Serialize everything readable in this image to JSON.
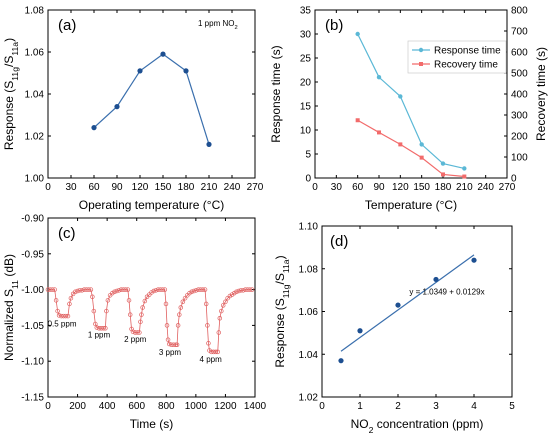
{
  "chart_data": [
    {
      "panel_label": "(a)",
      "type": "line",
      "annotation": {
        "prefix": "1 ppm NO",
        "sub": "2"
      },
      "x": [
        60,
        90,
        120,
        150,
        180,
        210
      ],
      "series": [
        {
          "values": [
            1.024,
            1.034,
            1.051,
            1.059,
            1.051,
            1.016
          ],
          "color": "#3a6fad"
        }
      ],
      "xlabel": "Operating temperature (°C)",
      "ylabel": {
        "prefix": "Response (S",
        "sub1": "11g",
        "mid": "/S",
        "sub2": "11a",
        "suffix": ")"
      },
      "xlim": [
        0,
        270
      ],
      "ylim": [
        1.0,
        1.08
      ],
      "xticks": [
        0,
        30,
        60,
        90,
        120,
        150,
        180,
        210,
        240,
        270
      ],
      "yticks": [
        1.0,
        1.02,
        1.04,
        1.06,
        1.08
      ],
      "ytick_labels": [
        "1.00",
        "1.02",
        "1.04",
        "1.06",
        "1.08"
      ],
      "grid": false
    },
    {
      "panel_label": "(b)",
      "type": "line",
      "x": [
        60,
        90,
        120,
        150,
        180,
        210
      ],
      "series": [
        {
          "name": "Response time",
          "axis": "left",
          "values": [
            30,
            21,
            17,
            7,
            3,
            2
          ],
          "color": "#5bb8d6"
        },
        {
          "name": "Recovery time",
          "axis": "right",
          "values": [
            275,
            217,
            160,
            97,
            17,
            7
          ],
          "color": "#f26b6b"
        }
      ],
      "xlabel": "Temperature (°C)",
      "ylabel": "Response time (s)",
      "ylabel_right": "Recovery time (s)",
      "xlim": [
        0,
        270
      ],
      "ylim": [
        0,
        35
      ],
      "ylim_right": [
        0,
        800
      ],
      "xticks": [
        0,
        30,
        60,
        90,
        120,
        150,
        180,
        210,
        240,
        270
      ],
      "yticks": [
        0,
        5,
        10,
        15,
        20,
        25,
        30,
        35
      ],
      "yticks_right": [
        0,
        100,
        200,
        300,
        400,
        500,
        600,
        700,
        800
      ],
      "legend_position": "top-right",
      "grid": false
    },
    {
      "panel_label": "(c)",
      "type": "line",
      "series": [
        {
          "color": "#e06060",
          "points": [
            [
              0,
              -1.0
            ],
            [
              15,
              -1.0
            ],
            [
              30,
              -1.0
            ],
            [
              45,
              -1.0
            ],
            [
              55,
              -1.015
            ],
            [
              65,
              -1.03
            ],
            [
              75,
              -1.036
            ],
            [
              90,
              -1.037
            ],
            [
              105,
              -1.037
            ],
            [
              120,
              -1.037
            ],
            [
              135,
              -1.037
            ],
            [
              145,
              -1.02
            ],
            [
              155,
              -1.012
            ],
            [
              170,
              -1.006
            ],
            [
              185,
              -1.003
            ],
            [
              200,
              -1.002
            ],
            [
              215,
              -1.001
            ],
            [
              230,
              -1.001
            ],
            [
              245,
              -1.0
            ],
            [
              260,
              -1.0
            ],
            [
              275,
              -1.0
            ],
            [
              290,
              -1.0
            ],
            [
              300,
              -1.01
            ],
            [
              310,
              -1.03
            ],
            [
              320,
              -1.048
            ],
            [
              330,
              -1.053
            ],
            [
              345,
              -1.054
            ],
            [
              360,
              -1.054
            ],
            [
              375,
              -1.054
            ],
            [
              388,
              -1.054
            ],
            [
              395,
              -1.03
            ],
            [
              405,
              -1.015
            ],
            [
              420,
              -1.008
            ],
            [
              435,
              -1.005
            ],
            [
              450,
              -1.003
            ],
            [
              465,
              -1.002
            ],
            [
              480,
              -1.001
            ],
            [
              495,
              -1.0
            ],
            [
              510,
              -1.0
            ],
            [
              525,
              -1.0
            ],
            [
              540,
              -1.0
            ],
            [
              548,
              -1.015
            ],
            [
              556,
              -1.035
            ],
            [
              565,
              -1.055
            ],
            [
              575,
              -1.059
            ],
            [
              590,
              -1.06
            ],
            [
              605,
              -1.06
            ],
            [
              618,
              -1.06
            ],
            [
              625,
              -1.045
            ],
            [
              632,
              -1.035
            ],
            [
              640,
              -1.025
            ],
            [
              655,
              -1.016
            ],
            [
              670,
              -1.01
            ],
            [
              685,
              -1.007
            ],
            [
              700,
              -1.004
            ],
            [
              715,
              -1.002
            ],
            [
              730,
              -1.001
            ],
            [
              745,
              -1.0
            ],
            [
              760,
              -1.0
            ],
            [
              775,
              -1.0
            ],
            [
              790,
              -1.0
            ],
            [
              798,
              -1.02
            ],
            [
              805,
              -1.05
            ],
            [
              812,
              -1.07
            ],
            [
              820,
              -1.076
            ],
            [
              835,
              -1.077
            ],
            [
              850,
              -1.077
            ],
            [
              865,
              -1.077
            ],
            [
              873,
              -1.077
            ],
            [
              880,
              -1.05
            ],
            [
              888,
              -1.035
            ],
            [
              898,
              -1.025
            ],
            [
              912,
              -1.017
            ],
            [
              927,
              -1.012
            ],
            [
              942,
              -1.008
            ],
            [
              957,
              -1.005
            ],
            [
              972,
              -1.003
            ],
            [
              987,
              -1.002
            ],
            [
              1002,
              -1.001
            ],
            [
              1017,
              -1.0
            ],
            [
              1032,
              -1.0
            ],
            [
              1047,
              -1.0
            ],
            [
              1062,
              -1.0
            ],
            [
              1070,
              -1.02
            ],
            [
              1078,
              -1.05
            ],
            [
              1085,
              -1.075
            ],
            [
              1092,
              -1.085
            ],
            [
              1105,
              -1.087
            ],
            [
              1120,
              -1.087
            ],
            [
              1135,
              -1.087
            ],
            [
              1148,
              -1.087
            ],
            [
              1155,
              -1.06
            ],
            [
              1162,
              -1.04
            ],
            [
              1172,
              -1.03
            ],
            [
              1185,
              -1.022
            ],
            [
              1200,
              -1.017
            ],
            [
              1215,
              -1.012
            ],
            [
              1230,
              -1.009
            ],
            [
              1245,
              -1.007
            ],
            [
              1260,
              -1.005
            ],
            [
              1275,
              -1.003
            ],
            [
              1290,
              -1.002
            ],
            [
              1305,
              -1.001
            ],
            [
              1320,
              -1.001
            ],
            [
              1335,
              -1.0
            ],
            [
              1350,
              -1.0
            ],
            [
              1365,
              -1.0
            ],
            [
              1380,
              -1.0
            ]
          ]
        }
      ],
      "annotations": [
        {
          "text": "0.5 ppm",
          "x": 95,
          "y": -1.047
        },
        {
          "text": "1 ppm",
          "x": 345,
          "y": -1.063
        },
        {
          "text": "2 ppm",
          "x": 590,
          "y": -1.069
        },
        {
          "text": "3 ppm",
          "x": 825,
          "y": -1.087
        },
        {
          "text": "4 ppm",
          "x": 1100,
          "y": -1.097
        }
      ],
      "xlabel": "Time (s)",
      "ylabel": {
        "prefix": "Normalized S",
        "sub": "11",
        "suffix": " (dB)"
      },
      "xlim": [
        0,
        1400
      ],
      "ylim": [
        -1.15,
        -0.9
      ],
      "xticks": [
        0,
        200,
        400,
        600,
        800,
        1000,
        1200,
        1400
      ],
      "yticks": [
        -1.15,
        -1.1,
        -1.05,
        -1.0,
        -0.95,
        -0.9
      ],
      "ytick_labels": [
        "-1.15",
        "-1.10",
        "-1.05",
        "-1.00",
        "-0.95",
        "-0.90"
      ],
      "grid": false
    },
    {
      "panel_label": "(d)",
      "type": "scatter",
      "series": [
        {
          "values": [
            [
              0.5,
              1.037
            ],
            [
              1,
              1.051
            ],
            [
              2,
              1.063
            ],
            [
              3,
              1.075
            ],
            [
              4,
              1.084
            ]
          ],
          "color": "#1d4f91"
        }
      ],
      "fit": {
        "x": [
          0.5,
          4
        ],
        "y": [
          1.0414,
          1.0865
        ],
        "equation": "y = 1.0349 + 0.0129x",
        "color": "#3a6fad"
      },
      "xlabel": {
        "prefix": "NO",
        "sub": "2",
        "suffix": " concentration (ppm)"
      },
      "ylabel": {
        "prefix": "Response (S",
        "sub1": "11g",
        "mid": "/S",
        "sub2": "11a",
        "suffix": ")"
      },
      "xlim": [
        0,
        5
      ],
      "ylim": [
        1.02,
        1.1
      ],
      "xticks": [
        0,
        1,
        2,
        3,
        4,
        5
      ],
      "yticks": [
        1.02,
        1.04,
        1.06,
        1.08,
        1.1
      ],
      "ytick_labels": [
        "1.02",
        "1.04",
        "1.06",
        "1.08",
        "1.10"
      ],
      "grid": false
    }
  ]
}
